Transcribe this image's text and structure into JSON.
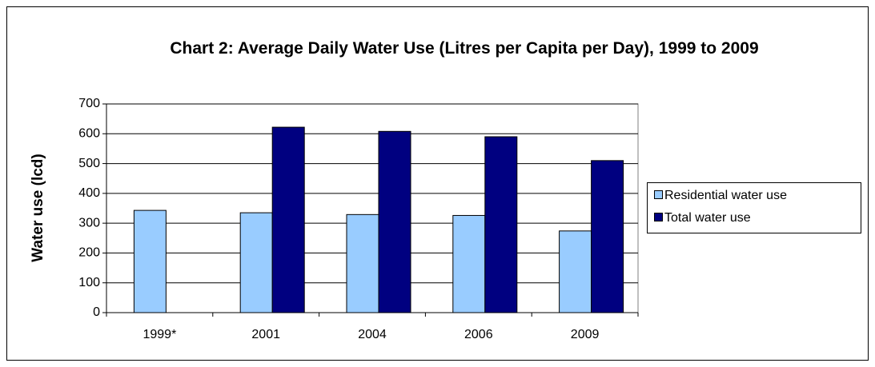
{
  "chart_data": {
    "type": "bar",
    "title": "Chart 2: Average Daily Water Use (Litres per Capita per Day), 1999 to 2009",
    "y_label": "Water use (lcd)",
    "categories": [
      "1999*",
      "2001",
      "2004",
      "2006",
      "2009"
    ],
    "series": [
      {
        "name": "Residential water use",
        "color": "#99ccff",
        "values": [
          343,
          335,
          329,
          326,
          274
        ]
      },
      {
        "name": "Total water use",
        "color": "#000080",
        "values": [
          null,
          622,
          608,
          590,
          510
        ]
      }
    ],
    "ylim": [
      0,
      700
    ],
    "yticks": [
      0,
      100,
      200,
      300,
      400,
      500,
      600,
      700
    ],
    "grid": true,
    "legend": "right"
  }
}
